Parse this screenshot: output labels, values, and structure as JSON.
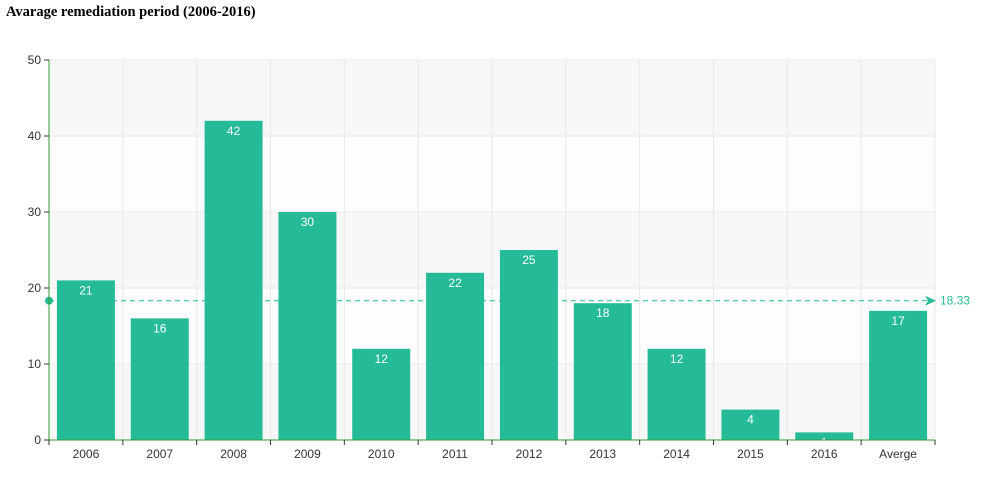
{
  "chart_data": {
    "type": "bar",
    "title": "Avarage remediation period (2006-2016)",
    "categories": [
      "2006",
      "2007",
      "2008",
      "2009",
      "2010",
      "2011",
      "2012",
      "2013",
      "2014",
      "2015",
      "2016",
      "Averge"
    ],
    "values": [
      21,
      16,
      42,
      30,
      12,
      22,
      25,
      18,
      12,
      4,
      1,
      17
    ],
    "ylim": [
      0,
      50
    ],
    "yticks": [
      0,
      10,
      20,
      30,
      40,
      50
    ],
    "xlabel": "",
    "ylabel": "",
    "grid": true,
    "mark_line": {
      "type": "average",
      "value": 18.33,
      "label": "18.33"
    },
    "colors": {
      "bar": "#26bb98",
      "mark_line": "#26bb98",
      "axis": "#2e9d2e",
      "grid": "#e8e8e8",
      "band": "#f7f7f7"
    }
  }
}
